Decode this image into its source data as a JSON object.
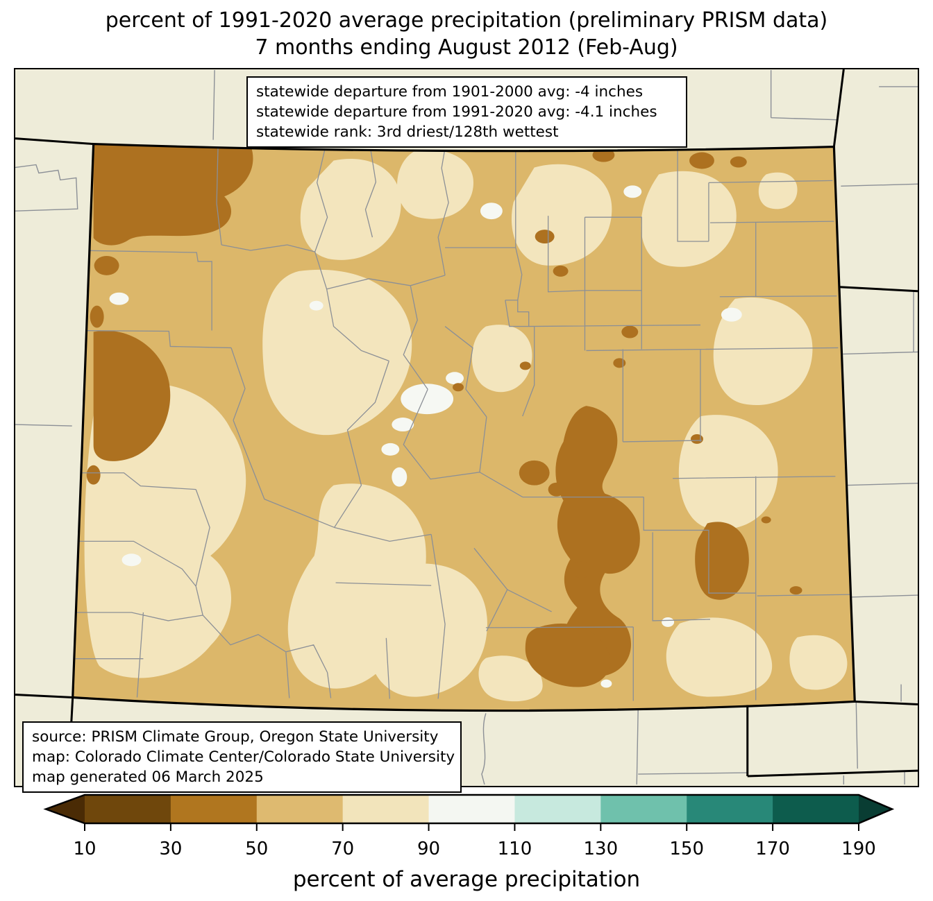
{
  "title": {
    "line1": "percent of 1991-2020 average precipitation (preliminary PRISM data)",
    "line2": "7 months ending August 2012 (Feb-Aug)"
  },
  "stats_box": {
    "line1": "statewide departure from 1901-2000 avg: -4 inches",
    "line2": "statewide departure from 1991-2020 avg: -4.1 inches",
    "line3": "statewide rank: 3rd driest/128th wettest"
  },
  "source_box": {
    "line1": "source: PRISM Climate Group, Oregon State University",
    "line2": "map: Colorado Climate Center/Colorado State University",
    "line3": "map generated 06 March 2025"
  },
  "colorbar": {
    "label": "percent of average precipitation",
    "ticks": [
      "10",
      "30",
      "50",
      "70",
      "90",
      "110",
      "130",
      "150",
      "170",
      "190"
    ],
    "segment_colors": [
      "#6f470c",
      "#b0761f",
      "#deba70",
      "#f2e4bb",
      "#f4f7f2",
      "#c7e9de",
      "#6fc1ac",
      "#288878",
      "#0d5c4d"
    ],
    "arrow_left_color": "#4a2b05",
    "arrow_right_color": "#093d33",
    "outline_color": "#000000"
  },
  "map": {
    "colors": {
      "outside": "#eeecd9",
      "band_30_50": "#ad7120",
      "band_50_70": "#dcb76a",
      "band_70_90": "#f3e5bd",
      "band_90_110": "#f6f8f3",
      "county_line": "#8b8f96",
      "state_border": "#000000"
    }
  }
}
